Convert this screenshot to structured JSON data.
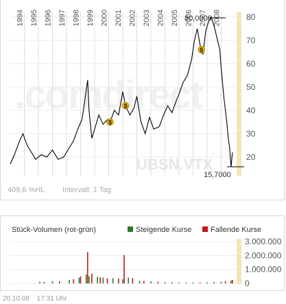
{
  "price": {
    "watermark": ".comdirect",
    "instrument": "UBSN.VTX",
    "performance": "409,6 %HL",
    "interval": "Intervall: 1 Tag",
    "high_label": "80,0000",
    "low_label": "15,7000",
    "dividend_marker": "$"
  },
  "volume": {
    "title": "Stück-Volumen (rot-grün)",
    "legend_rising": "Steigende Kurse",
    "legend_falling": "Fallende Kurse"
  },
  "footer": {
    "date": "20.10.08",
    "time": "17:31 Uhr"
  },
  "colors": {
    "line": "#000000",
    "axis_band": "#f6e4b4",
    "rising": "#2a7a2a",
    "falling": "#c01616",
    "dividend": "#e8b400"
  },
  "chart_data": [
    {
      "type": "line",
      "name": "price",
      "ylim": [
        12,
        82
      ],
      "yticks": [
        20,
        30,
        40,
        50,
        60,
        70,
        80
      ],
      "x_years": [
        "1994",
        "1995",
        "1996",
        "1997",
        "1998",
        "1999",
        "2000",
        "2001",
        "2002",
        "2003",
        "2004",
        "2005",
        "2006",
        "2007",
        "2008"
      ],
      "x": [
        1993.0,
        1993.3,
        1993.6,
        1993.9,
        1994.2,
        1994.5,
        1994.8,
        1995.2,
        1995.6,
        1996.0,
        1996.4,
        1996.8,
        1997.1,
        1997.5,
        1997.8,
        1998.1,
        1998.3,
        1998.5,
        1998.6,
        1998.8,
        1999.0,
        1999.3,
        1999.6,
        1999.9,
        2000.1,
        2000.4,
        2000.7,
        2001.0,
        2001.2,
        2001.5,
        2001.8,
        2002.0,
        2002.3,
        2002.6,
        2002.9,
        2003.2,
        2003.6,
        2003.9,
        2004.2,
        2004.5,
        2004.8,
        2005.0,
        2005.3,
        2005.6,
        2005.9,
        2006.1,
        2006.3,
        2006.5,
        2006.7,
        2006.9,
        2007.1,
        2007.3,
        2007.5,
        2007.7,
        2007.9,
        2008.0,
        2008.2,
        2008.4,
        2008.5,
        2008.6,
        2008.7,
        2008.8
      ],
      "values": [
        17,
        21,
        26,
        30,
        25,
        22,
        19,
        21,
        20,
        23,
        19,
        20,
        23,
        27,
        32,
        36,
        44,
        53,
        40,
        28,
        32,
        38,
        34,
        36,
        35,
        40,
        38,
        48,
        42,
        38,
        41,
        46,
        35,
        30,
        37,
        32,
        33,
        38,
        42,
        39,
        44,
        47,
        52,
        55,
        62,
        70,
        75,
        68,
        64,
        74,
        78,
        80,
        76,
        71,
        66,
        58,
        45,
        35,
        28,
        24,
        15.7,
        22
      ],
      "high": 80.0,
      "low": 15.7,
      "dividends_x": [
        2000.1,
        2001.2,
        2006.6
      ]
    },
    {
      "type": "bar",
      "name": "volume",
      "ylim": [
        0,
        3000000
      ],
      "yticks": [
        0,
        1000000,
        2000000,
        3000000
      ],
      "ytick_labels": [
        "0",
        "1.000.000",
        "2.000.000",
        "3.000.000"
      ],
      "series": [
        {
          "name": "Steigende Kurse",
          "x": [
            1995.1,
            1996.0,
            1997.2,
            1997.9,
            1998.4,
            1998.6,
            1999.2,
            1999.6,
            2000.3,
            2001.0,
            2001.4,
            2002.2,
            2003.0,
            2004.0,
            2005.0,
            2006.0,
            2007.0,
            2008.0,
            2008.7
          ],
          "values": [
            120000,
            160000,
            260000,
            420000,
            650000,
            520000,
            480000,
            420000,
            380000,
            300000,
            420000,
            180000,
            140000,
            90000,
            70000,
            60000,
            80000,
            120000,
            200000
          ]
        },
        {
          "name": "Fallende Kurse",
          "x": [
            1995.4,
            1996.5,
            1997.5,
            1998.0,
            1998.5,
            1998.8,
            1999.4,
            1999.9,
            2000.7,
            2001.1,
            2001.7,
            2002.5,
            2003.5,
            2004.5,
            2005.5,
            2006.5,
            2007.5,
            2008.3,
            2008.8
          ],
          "values": [
            100000,
            150000,
            300000,
            500000,
            2250000,
            700000,
            450000,
            350000,
            350000,
            2050000,
            380000,
            170000,
            120000,
            80000,
            60000,
            70000,
            90000,
            150000,
            250000
          ]
        }
      ]
    }
  ]
}
